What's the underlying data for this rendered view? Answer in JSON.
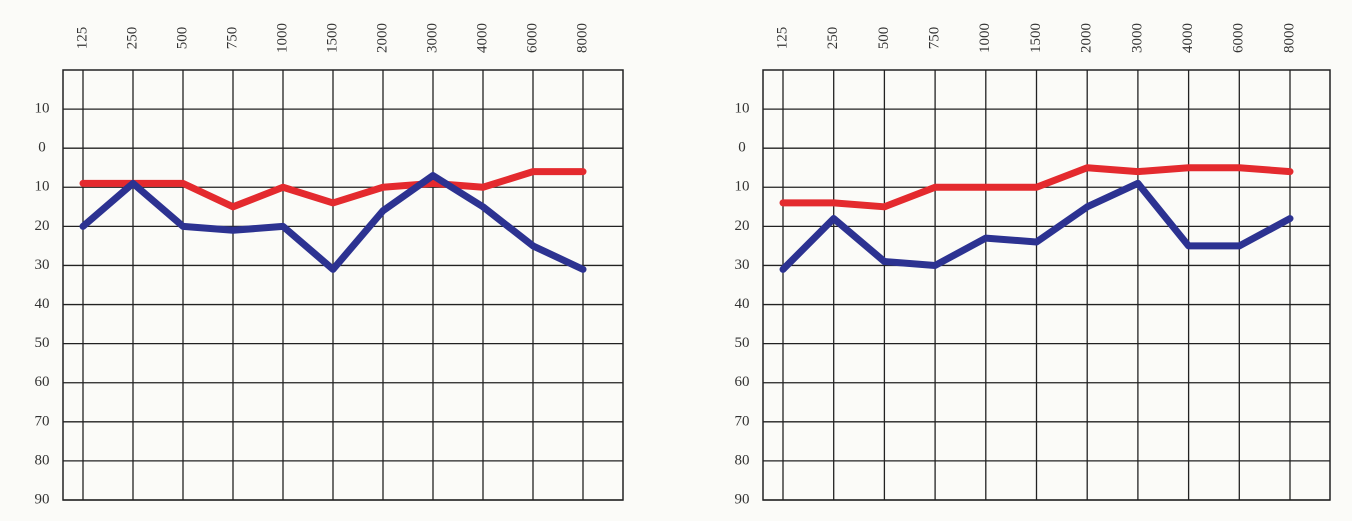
{
  "chart_data": [
    {
      "type": "line",
      "categories": [
        "125",
        "250",
        "500",
        "750",
        "1000",
        "1500",
        "2000",
        "3000",
        "4000",
        "6000",
        "8000"
      ],
      "series": [
        {
          "color": "#e42a2e",
          "values": [
            9,
            9,
            9,
            15,
            10,
            14,
            10,
            9,
            10,
            6,
            6
          ]
        },
        {
          "color": "#2c3291",
          "values": [
            20,
            9,
            20,
            21,
            20,
            31,
            16,
            7,
            15,
            25,
            31
          ]
        }
      ],
      "ylim": [
        -20,
        90
      ],
      "inverted": true,
      "yticks": [
        {
          "value": -10,
          "label": "10"
        },
        0,
        10,
        20,
        30,
        40,
        50,
        60,
        70,
        80,
        90
      ],
      "grid": true
    },
    {
      "type": "line",
      "categories": [
        "125",
        "250",
        "500",
        "750",
        "1000",
        "1500",
        "2000",
        "3000",
        "4000",
        "6000",
        "8000"
      ],
      "series": [
        {
          "color": "#e42a2e",
          "values": [
            14,
            14,
            15,
            10,
            10,
            10,
            5,
            6,
            5,
            5,
            6
          ]
        },
        {
          "color": "#2c3291",
          "values": [
            31,
            18,
            29,
            30,
            23,
            24,
            15,
            9,
            25,
            25,
            18
          ]
        }
      ],
      "ylim": [
        -20,
        90
      ],
      "inverted": true,
      "yticks": [
        {
          "value": -10,
          "label": "10"
        },
        0,
        10,
        20,
        30,
        40,
        50,
        60,
        70,
        80,
        90
      ],
      "grid": true
    }
  ]
}
